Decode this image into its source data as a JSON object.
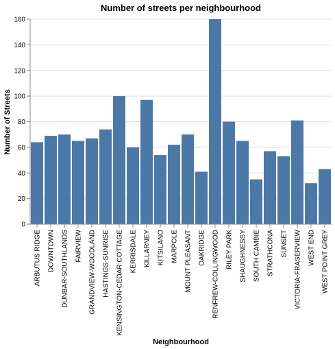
{
  "chart_data": {
    "type": "bar",
    "title": "Number of streets per neighbourhood",
    "xlabel": "Neighbourhood",
    "ylabel": "Number of Streets",
    "ylim": [
      0,
      160
    ],
    "yticks": [
      0,
      20,
      40,
      60,
      80,
      100,
      120,
      140,
      160
    ],
    "grid": true,
    "colors": {
      "bar": "#4c78a8",
      "grid": "#dddddd",
      "axis": "#888888"
    },
    "categories": [
      "ARBUTUS RIDGE",
      "DOWNTOWN",
      "DUNBAR-SOUTHLANDS",
      "FAIRVIEW",
      "GRANDVIEW-WOODLAND",
      "HASTINGS-SUNRISE",
      "KENSINGTON-CEDAR COTTAGE",
      "KERRISDALE",
      "KILLARNEY",
      "KITSILANO",
      "MARPOLE",
      "MOUNT PLEASANT",
      "OAKRIDGE",
      "RENFREW-COLLINGWOOD",
      "RILEY PARK",
      "SHAUGHNESSY",
      "SOUTH CAMBIE",
      "STRATHCONA",
      "SUNSET",
      "VICTORIA-FRASERVIEW",
      "WEST END",
      "WEST POINT GREY"
    ],
    "values": [
      64,
      69,
      70,
      65,
      67,
      74,
      100,
      60,
      97,
      54,
      62,
      70,
      41,
      160,
      80,
      65,
      35,
      57,
      53,
      81,
      32,
      43
    ]
  }
}
